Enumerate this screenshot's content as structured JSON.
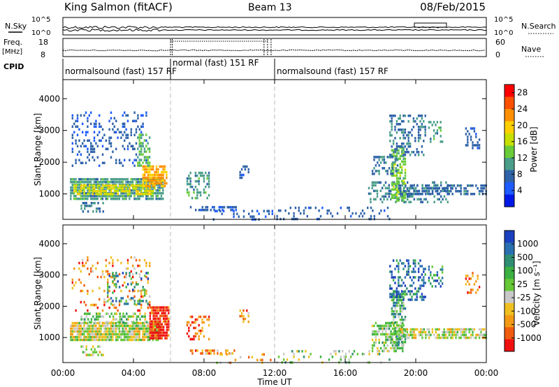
{
  "header": {
    "station": "King Salmon (fitACF)",
    "beam": "Beam 13",
    "date": "08/Feb/2015"
  },
  "labels": {
    "nsky": "N.Sky",
    "nsearch": "N.Search",
    "freq_top": "Freq.",
    "freq_unit": "[MHz]",
    "nave": "Nave",
    "cpid": "CPID",
    "nsky_tick_hi": "10^5",
    "nsky_tick_lo": "10^0",
    "nsearch_tick_hi": "10^5",
    "nsearch_tick_lo": "10^0",
    "freq_tick_hi": "18",
    "freq_tick_lo": "8",
    "nave_tick_hi": "60",
    "nave_tick_lo": "0"
  },
  "colors": {
    "power_scale": [
      "#0018e6",
      "#1e5cff",
      "#2f62a8",
      "#4a9e8a",
      "#6acc3a",
      "#c8e000",
      "#ffd000",
      "#ff9000",
      "#ff5000",
      "#ff0000"
    ],
    "velocity_scale": [
      "#1a3fbf",
      "#2a6fb0",
      "#2f8e72",
      "#3cb043",
      "#67c938",
      "#c8c8c8",
      "#f0c020",
      "#f39a15",
      "#f05c10",
      "#f01010"
    ]
  },
  "chart_data": [
    {
      "type": "heatmap",
      "name": "power-panel",
      "ylabel": "Slant Range [km]",
      "xlabel": "",
      "x_ticks": [
        "00:00",
        "04:00",
        "08:00",
        "12:00",
        "16:00",
        "20:00",
        "00:00"
      ],
      "xlim": [
        0,
        24
      ],
      "y_ticks": [
        1000,
        2000,
        3000,
        4000
      ],
      "ylim": [
        200,
        4600
      ],
      "colorbar": {
        "label": "Power [dB]",
        "ticks": [
          "4",
          "8",
          "12",
          "16",
          "20",
          "24",
          "28"
        ],
        "range": [
          0,
          30
        ]
      },
      "cpid_segments": [
        {
          "label": "normalsound (fast) 157 RF",
          "start": 0,
          "end": 6.1
        },
        {
          "label": "normal (fast) 151 RF",
          "start": 6.1,
          "end": 11.7
        },
        {
          "label": "normalsound (fast) 157 RF",
          "start": 12.0,
          "end": 24
        }
      ],
      "regions": [
        {
          "t0": 0.4,
          "t1": 5.7,
          "r0": 800,
          "r1": 1500,
          "value": 10,
          "density": 0.85
        },
        {
          "t0": 0.6,
          "t1": 5.2,
          "r0": 1000,
          "r1": 1300,
          "value": 18,
          "density": 0.7
        },
        {
          "t0": 4.5,
          "t1": 5.9,
          "r0": 1200,
          "r1": 1900,
          "value": 22,
          "density": 0.8
        },
        {
          "t0": 0.5,
          "t1": 4.7,
          "r0": 1900,
          "r1": 3600,
          "value": 5,
          "density": 0.22
        },
        {
          "t0": 4.2,
          "t1": 4.9,
          "r0": 1900,
          "r1": 2900,
          "value": 12,
          "density": 0.5
        },
        {
          "t0": 1.0,
          "t1": 2.3,
          "r0": 450,
          "r1": 750,
          "value": 9,
          "density": 0.45
        },
        {
          "t0": 7.0,
          "t1": 8.3,
          "r0": 900,
          "r1": 1700,
          "value": 10,
          "density": 0.45
        },
        {
          "t0": 7.2,
          "t1": 9.8,
          "r0": 480,
          "r1": 620,
          "value": 5,
          "density": 0.55
        },
        {
          "t0": 10.0,
          "t1": 10.5,
          "r0": 1500,
          "r1": 1900,
          "value": 6,
          "density": 0.45
        },
        {
          "t0": 8.5,
          "t1": 12.0,
          "r0": 220,
          "r1": 500,
          "value": 5,
          "density": 0.2
        },
        {
          "t0": 12.0,
          "t1": 18.5,
          "r0": 220,
          "r1": 600,
          "value": 6,
          "density": 0.15
        },
        {
          "t0": 17.3,
          "t1": 21.8,
          "r0": 700,
          "r1": 1400,
          "value": 9,
          "density": 0.35
        },
        {
          "t0": 18.6,
          "t1": 19.4,
          "r0": 800,
          "r1": 2500,
          "value": 13,
          "density": 0.6
        },
        {
          "t0": 19.0,
          "t1": 24.0,
          "r0": 950,
          "r1": 1300,
          "value": 7,
          "density": 0.6
        },
        {
          "t0": 18.5,
          "t1": 20.5,
          "r0": 2200,
          "r1": 3500,
          "value": 8,
          "density": 0.35
        },
        {
          "t0": 20.7,
          "t1": 21.5,
          "r0": 2600,
          "r1": 3300,
          "value": 10,
          "density": 0.4
        },
        {
          "t0": 22.8,
          "t1": 23.6,
          "r0": 2400,
          "r1": 3100,
          "value": 6,
          "density": 0.3
        },
        {
          "t0": 17.5,
          "t1": 19.0,
          "r0": 1600,
          "r1": 2200,
          "value": 8,
          "density": 0.3
        }
      ]
    },
    {
      "type": "heatmap",
      "name": "velocity-panel",
      "ylabel": "Slant Range [km]",
      "xlabel": "Time UT",
      "x_ticks": [
        "00:00",
        "04:00",
        "08:00",
        "12:00",
        "16:00",
        "20:00",
        "00:00"
      ],
      "xlim": [
        0,
        24
      ],
      "y_ticks": [
        1000,
        2000,
        3000,
        4000
      ],
      "ylim": [
        200,
        4600
      ],
      "colorbar": {
        "label": "Velocity [m s⁻¹]",
        "ticks": [
          "1000",
          "500",
          "100",
          "25",
          "-25",
          "-100",
          "-500",
          "-1000"
        ]
      },
      "regions": [
        {
          "t0": 0.4,
          "t1": 5.5,
          "r0": 900,
          "r1": 1500,
          "value": 5,
          "density": 0.9
        },
        {
          "t0": 1.0,
          "t1": 4.8,
          "r0": 1500,
          "r1": 1800,
          "value": 4,
          "density": 0.45
        },
        {
          "t0": 4.9,
          "t1": 6.0,
          "r0": 1000,
          "r1": 2000,
          "value": 9,
          "density": 0.85
        },
        {
          "t0": 0.5,
          "t1": 4.9,
          "r0": 1900,
          "r1": 3600,
          "value": 7,
          "density": 0.18
        },
        {
          "t0": 2.5,
          "t1": 4.8,
          "r0": 2100,
          "r1": 3100,
          "value": 2,
          "density": 0.22
        },
        {
          "t0": 1.0,
          "t1": 2.3,
          "r0": 450,
          "r1": 750,
          "value": 5,
          "density": 0.4
        },
        {
          "t0": 7.0,
          "t1": 8.3,
          "r0": 900,
          "r1": 1700,
          "value": 8,
          "density": 0.45
        },
        {
          "t0": 7.2,
          "t1": 9.8,
          "r0": 480,
          "r1": 620,
          "value": 7,
          "density": 0.5
        },
        {
          "t0": 10.0,
          "t1": 10.5,
          "r0": 1500,
          "r1": 1900,
          "value": 7,
          "density": 0.4
        },
        {
          "t0": 8.5,
          "t1": 12.0,
          "r0": 220,
          "r1": 500,
          "value": 6,
          "density": 0.15
        },
        {
          "t0": 12.0,
          "t1": 18.5,
          "r0": 220,
          "r1": 600,
          "value": 4,
          "density": 0.15
        },
        {
          "t0": 17.5,
          "t1": 19.3,
          "r0": 550,
          "r1": 1500,
          "value": 4,
          "density": 0.55
        },
        {
          "t0": 18.6,
          "t1": 19.4,
          "r0": 800,
          "r1": 2500,
          "value": 3,
          "density": 0.6
        },
        {
          "t0": 19.0,
          "t1": 24.0,
          "r0": 950,
          "r1": 1300,
          "value": 5,
          "density": 0.7
        },
        {
          "t0": 18.5,
          "t1": 20.5,
          "r0": 2200,
          "r1": 3500,
          "value": 1,
          "density": 0.4
        },
        {
          "t0": 20.7,
          "t1": 21.5,
          "r0": 2600,
          "r1": 3300,
          "value": 2,
          "density": 0.4
        },
        {
          "t0": 22.8,
          "t1": 23.6,
          "r0": 2400,
          "r1": 3100,
          "value": 8,
          "density": 0.3
        }
      ]
    }
  ]
}
